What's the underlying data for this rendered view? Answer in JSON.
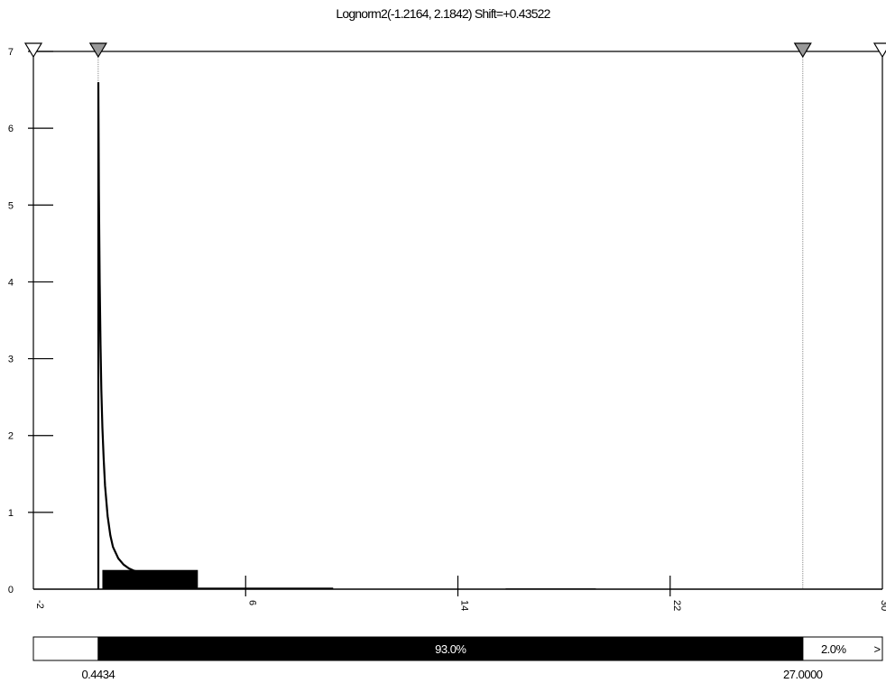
{
  "chart_data": {
    "type": "bar",
    "title": "Lognorm2(-1.2164, 2.1842) Shift=+0.43522",
    "xlabel": "",
    "ylabel": "",
    "xlim": [
      -2,
      30
    ],
    "ylim": [
      0,
      7
    ],
    "x_ticks": [
      -2,
      6,
      14,
      22,
      30
    ],
    "x_tick_labels": [
      "-2",
      "6",
      "14",
      "22",
      "30"
    ],
    "y_ticks": [
      0,
      1,
      2,
      3,
      4,
      5,
      6,
      7
    ],
    "y_tick_labels": [
      "0",
      "1",
      "2",
      "3",
      "4",
      "5",
      "6",
      "7"
    ],
    "histogram": [
      {
        "x0": 0.6,
        "x1": 4.2,
        "value": 0.25
      },
      {
        "x0": 4.2,
        "x1": 9.3,
        "value": 0.02
      },
      {
        "x0": 15.8,
        "x1": 19.2,
        "value": 0.01
      }
    ],
    "density_curve": {
      "name": "Lognorm2",
      "x": [
        0.45,
        0.47,
        0.5,
        0.53,
        0.56,
        0.6,
        0.65,
        0.7,
        0.8,
        0.9,
        1.0,
        1.2,
        1.4,
        1.6,
        1.8,
        2.0
      ],
      "y": [
        6.6,
        5.2,
        4.0,
        3.2,
        2.6,
        2.1,
        1.7,
        1.35,
        0.95,
        0.7,
        0.55,
        0.4,
        0.32,
        0.27,
        0.24,
        0.22
      ]
    },
    "markers": [
      {
        "x": -2,
        "shaded": false
      },
      {
        "x": 0.4434,
        "shaded": true
      },
      {
        "x": 27.0,
        "shaded": true
      },
      {
        "x": 30,
        "shaded": false
      }
    ],
    "delimiters": {
      "left": 0.4434,
      "right": 27.0,
      "left_label": "0.4434",
      "right_label": "27.0000",
      "left_pct": 5.0,
      "middle_pct": 93.0,
      "right_pct": 2.0,
      "middle_label": "93.0%",
      "right_label_pct": "2.0%",
      "overflow_symbol": ">"
    },
    "grid": false,
    "legend": "none"
  }
}
